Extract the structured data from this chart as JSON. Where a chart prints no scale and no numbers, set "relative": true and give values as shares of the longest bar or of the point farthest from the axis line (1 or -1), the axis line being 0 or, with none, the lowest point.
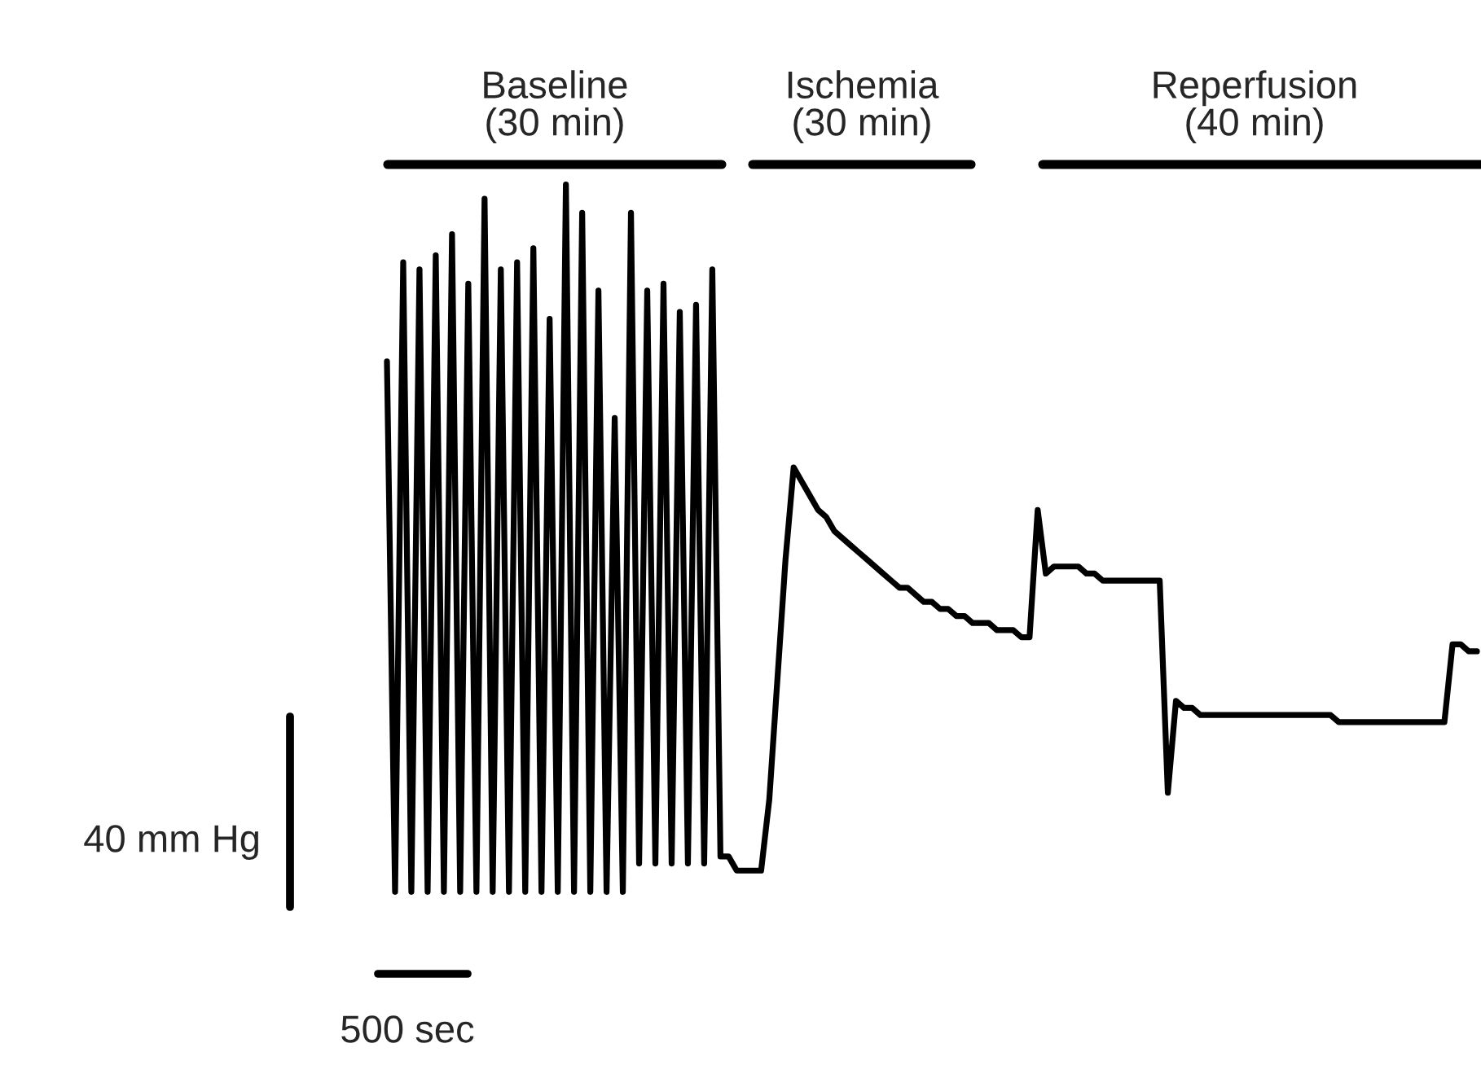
{
  "chart_data": {
    "type": "line",
    "relative": true,
    "categories": [
      null,
      null,
      null,
      null,
      null,
      null,
      null,
      null,
      null,
      null,
      null,
      null,
      null,
      null,
      null,
      null,
      null,
      null,
      null,
      null,
      null,
      null,
      null,
      null,
      null,
      null,
      null,
      null,
      null,
      null,
      null,
      null,
      null,
      null,
      null,
      null,
      null,
      null,
      null,
      null,
      null,
      null,
      null,
      null,
      null,
      null,
      null,
      null,
      null,
      null,
      null,
      null,
      null,
      null,
      null,
      null,
      null,
      null,
      null,
      null,
      null,
      null,
      null,
      null,
      null,
      null,
      null,
      null,
      null,
      null,
      null,
      null,
      null,
      null,
      null,
      null,
      null,
      null,
      null,
      null,
      null,
      null,
      null,
      null,
      null,
      null,
      null,
      null,
      null,
      null,
      null,
      null,
      null,
      null,
      null,
      null,
      null,
      null,
      null,
      null,
      null,
      null,
      null,
      null,
      null,
      null,
      null,
      null,
      null,
      null,
      null,
      null,
      null,
      null,
      null,
      null,
      null,
      null,
      null,
      null,
      null,
      null,
      null,
      null,
      null,
      null,
      null,
      null,
      null,
      null,
      null,
      null,
      null,
      null,
      null
    ],
    "series": [
      {
        "color": "#000000",
        "line_style": "solid",
        "values": [
          0.75,
          0.0,
          0.89,
          0.0,
          0.88,
          0.0,
          0.9,
          0.0,
          0.93,
          0.0,
          0.86,
          0.0,
          0.98,
          0.0,
          0.88,
          0.0,
          0.89,
          0.0,
          0.91,
          0.0,
          0.81,
          0.0,
          1.0,
          0.0,
          0.96,
          0.0,
          0.85,
          0.0,
          0.67,
          0.0,
          0.96,
          0.04,
          0.85,
          0.04,
          0.86,
          0.04,
          0.82,
          0.04,
          0.83,
          0.04,
          0.88,
          0.05,
          0.05,
          0.03,
          0.03,
          0.03,
          0.03,
          0.13,
          0.3,
          0.47,
          0.6,
          0.58,
          0.56,
          0.54,
          0.53,
          0.51,
          0.5,
          0.49,
          0.48,
          0.47,
          0.46,
          0.45,
          0.44,
          0.43,
          0.43,
          0.42,
          0.41,
          0.41,
          0.4,
          0.4,
          0.39,
          0.39,
          0.38,
          0.38,
          0.38,
          0.37,
          0.37,
          0.37,
          0.36,
          0.36,
          0.54,
          0.45,
          0.46,
          0.46,
          0.46,
          0.46,
          0.45,
          0.45,
          0.44,
          0.44,
          0.44,
          0.44,
          0.44,
          0.44,
          0.44,
          0.44,
          0.14,
          0.27,
          0.26,
          0.26,
          0.25,
          0.25,
          0.25,
          0.25,
          0.25,
          0.25,
          0.25,
          0.25,
          0.25,
          0.25,
          0.25,
          0.25,
          0.25,
          0.25,
          0.25,
          0.25,
          0.25,
          0.24,
          0.24,
          0.24,
          0.24,
          0.24,
          0.24,
          0.24,
          0.24,
          0.24,
          0.24,
          0.24,
          0.24,
          0.24,
          0.24,
          0.35,
          0.35,
          0.34,
          0.34
        ]
      }
    ],
    "annotations": [
      "Baseline\n(30 min)",
      "Ischemia\n(30 min)",
      "Reperfusion\n(40 min)",
      "40 mm Hg",
      "500 sec"
    ]
  }
}
